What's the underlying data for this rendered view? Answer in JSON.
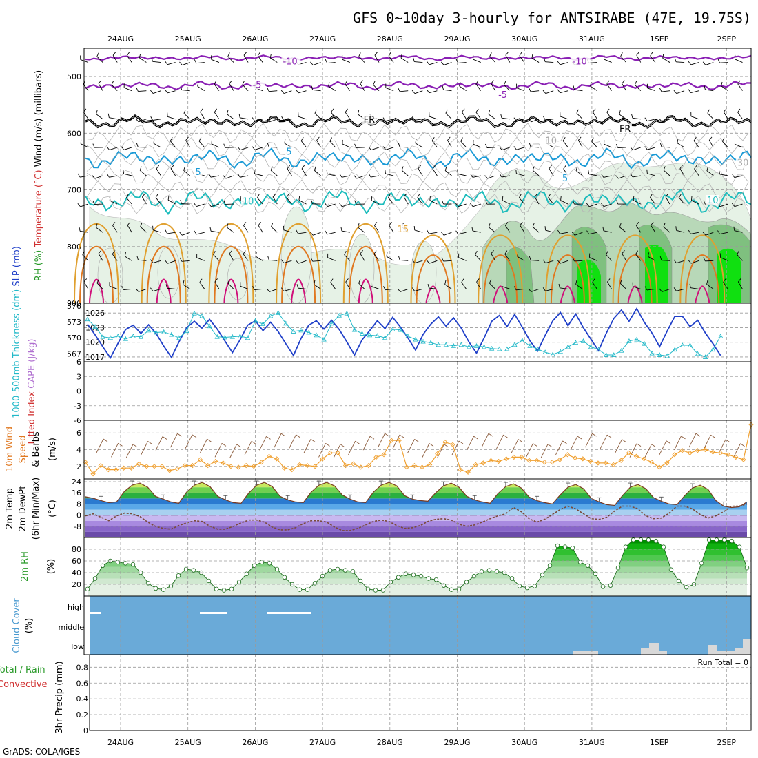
{
  "title": "GFS 0~10day 3-hourly for ANTSIRABE (47E, 19.75S)",
  "footer": "GrADS: COLA/IGES",
  "colors": {
    "purple": "#8a1fb4",
    "cyan_dark": "#1a9ad6",
    "teal": "#1cbcbc",
    "orange_light": "#e0a030",
    "orange": "#e07820",
    "magenta": "#d0107a",
    "rh_light": "#e6f2e6",
    "rh_mid": "#b8d8b8",
    "rh_dark": "#7fc07f",
    "rh_bright": "#10e010",
    "slp_blue": "#1f3fc8",
    "thick_cyan": "#20b8c8",
    "wind_orange": "#f0a030",
    "barb_brown": "#8a5a3a",
    "cloud_blue": "#6aaad8"
  },
  "chart_data": [
    {
      "id": "upper_air",
      "type": "contour",
      "ylabels": [
        {
          "text": "RH (%)",
          "color": "#2a9a2a"
        },
        {
          "text": "Temperature (°C)",
          "color": "#d03030"
        },
        {
          "text": "Wind (m/s)",
          "color": "#000000"
        },
        {
          "text": "(millibars)",
          "color": "#000000"
        }
      ],
      "y_axis": {
        "range": [
          900,
          450
        ],
        "ticks": [
          500,
          600,
          700,
          800,
          900
        ]
      },
      "x_dates": [
        "24AUG",
        "25AUG",
        "26AUG",
        "27AUG",
        "28AUG",
        "29AUG",
        "30AUG",
        "31AUG",
        "1SEP",
        "2SEP"
      ],
      "contour_labels": [
        {
          "text": "-10",
          "color": "#8a1fb4",
          "level_mb": 475,
          "day": 2.85
        },
        {
          "text": "-10",
          "color": "#8a1fb4",
          "level_mb": 475,
          "day": 7.15
        },
        {
          "text": "-5",
          "color": "#8a1fb4",
          "level_mb": 516,
          "day": 2.4
        },
        {
          "text": "-5",
          "color": "#8a1fb4",
          "level_mb": 534,
          "day": 6.05
        },
        {
          "text": "FR",
          "color": "#000000",
          "level_mb": 578,
          "day": 4.05
        },
        {
          "text": "FR",
          "color": "#000000",
          "level_mb": 594,
          "day": 7.85
        },
        {
          "text": "5",
          "color": "#1a9ad6",
          "level_mb": 634,
          "day": 2.9
        },
        {
          "text": "5",
          "color": "#1a9ad6",
          "level_mb": 670,
          "day": 1.55
        },
        {
          "text": "5",
          "color": "#1a9ad6",
          "level_mb": 681,
          "day": 7.0
        },
        {
          "text": "10",
          "color": "#1cbcbc",
          "level_mb": 722,
          "day": 2.25
        },
        {
          "text": "10",
          "color": "#1cbcbc",
          "level_mb": 720,
          "day": 9.15
        },
        {
          "text": "15",
          "color": "#e0a030",
          "level_mb": 771,
          "day": 4.55
        },
        {
          "text": "10",
          "color": "#aaaaaa",
          "level_mb": 615,
          "day": 6.75
        },
        {
          "text": "30",
          "color": "#aaaaaa",
          "level_mb": 654,
          "day": 9.6
        }
      ]
    },
    {
      "id": "slp_thickness",
      "type": "line",
      "ylabels": [
        {
          "text": "1000-500mb Thickness (dm)",
          "color": "#20b8c8"
        },
        {
          "text": "SLP (mb)",
          "color": "#1f3fc8"
        }
      ],
      "left_ticks": [
        567,
        570,
        573,
        576
      ],
      "right_ticks": [
        1017,
        1020,
        1023,
        1026
      ],
      "slp_range": [
        1016,
        1028
      ],
      "thickness_range": [
        565.5,
        576.5
      ],
      "series": [
        {
          "quantity": "slp",
          "values": [
            1023.7,
            1021.5,
            1019.1,
            1016.8,
            1019.8,
            1022.6,
            1023.5,
            1021.8,
            1023.6,
            1021.8,
            1019.2,
            1016.9,
            1020.1,
            1023.0,
            1024.3,
            1022.9,
            1024.7,
            1022.7,
            1020.3,
            1017.9,
            1020.5,
            1023.5,
            1024.4,
            1022.4,
            1024.1,
            1022.2,
            1019.7,
            1017.3,
            1020.8,
            1023.5,
            1024.4,
            1022.7,
            1024.5,
            1022.6,
            1020.1,
            1017.4,
            1020.5,
            1022.4,
            1024.4,
            1022.8,
            1025.1,
            1023.2,
            1020.9,
            1018.4,
            1021.6,
            1023.7,
            1025.2,
            1023.3,
            1025.0,
            1022.9,
            1020.1,
            1017.8,
            1020.9,
            1024.3,
            1025.5,
            1023.2,
            1025.7,
            1023.1,
            1020.3,
            1018.2,
            1021.4,
            1024.4,
            1026.1,
            1023.4,
            1025.8,
            1023.0,
            1020.6,
            1018.3,
            1021.8,
            1024.9,
            1026.6,
            1024.3,
            1026.9,
            1024.1,
            1021.9,
            1019.1,
            1022.3,
            1025.3,
            1025.3,
            1023.2,
            1024.5,
            1021.9,
            1019.7,
            1017.3
          ]
        },
        {
          "quantity": "thickness",
          "values": [
            573.5,
            572.1,
            570.2,
            570.0,
            570.3,
            569.8,
            570.3,
            570.2,
            571.4,
            571.0,
            571.1,
            570.6,
            570.0,
            571.3,
            574.6,
            574.1,
            572.2,
            570.2,
            570.1,
            570.2,
            570.3,
            570.0,
            573.2,
            572.6,
            574.1,
            574.7,
            572.7,
            571.2,
            571.4,
            571.0,
            570.5,
            569.7,
            572.7,
            574.2,
            574.6,
            571.5,
            570.8,
            570.5,
            570.4,
            570.0,
            571.6,
            571.5,
            570.3,
            569.7,
            569.3,
            569.1,
            568.7,
            568.7,
            568.5,
            568.7,
            568.3,
            568.5,
            568.3,
            568.0,
            567.9,
            567.9,
            568.7,
            569.5,
            568.5,
            567.9,
            567.3,
            566.9,
            567.4,
            568.3,
            569.1,
            569.4,
            568.3,
            567.8,
            566.8,
            566.8,
            567.6,
            569.4,
            569.7,
            568.9,
            567.1,
            566.8,
            566.6,
            567.8,
            568.6,
            568.6,
            567.0,
            566.4,
            567.8,
            570.3
          ]
        }
      ]
    },
    {
      "id": "stability",
      "type": "line",
      "ylabels": [
        {
          "text": "Lifted Index",
          "color": "#d03030"
        },
        {
          "text": "CAPE (J/kg)",
          "color": "#b070d0"
        }
      ],
      "ticks": [
        "6",
        "3",
        "0",
        "-3",
        "-6"
      ],
      "lifted_index_range": [
        -6,
        6
      ],
      "zero_line": 0
    },
    {
      "id": "wind10m",
      "type": "line",
      "ylabels": [
        {
          "text": "10m Wind",
          "color": "#e07820"
        },
        {
          "text": "Speed",
          "color": "#e07820"
        },
        {
          "text": "& Barbs",
          "color": "#000000"
        },
        {
          "text": "(m/s)",
          "color": "#000000"
        }
      ],
      "ticks": [
        2,
        4,
        6
      ],
      "range": [
        0.5,
        7.5
      ],
      "series": [
        {
          "quantity": "wind_speed",
          "values": [
            2.5,
            1.1,
            2.1,
            1.6,
            1.6,
            1.8,
            1.8,
            2.3,
            2.0,
            2.0,
            2.0,
            1.5,
            1.7,
            2.1,
            2.1,
            2.8,
            2.1,
            2.6,
            2.4,
            2.0,
            1.9,
            2.1,
            2.0,
            2.5,
            3.2,
            2.9,
            1.8,
            1.6,
            2.2,
            2.1,
            2.0,
            2.9,
            3.6,
            3.6,
            2.1,
            2.3,
            1.9,
            2.1,
            3.1,
            3.4,
            5.1,
            5.1,
            1.9,
            2.1,
            1.9,
            2.2,
            3.5,
            4.9,
            4.6,
            1.6,
            1.3,
            2.2,
            2.4,
            2.7,
            2.6,
            2.9,
            3.1,
            3.1,
            2.7,
            2.7,
            2.5,
            2.5,
            2.8,
            3.4,
            3.0,
            2.9,
            2.6,
            2.4,
            2.4,
            2.2,
            2.7,
            3.6,
            3.2,
            2.9,
            2.5,
            1.9,
            2.4,
            3.4,
            3.9,
            3.6,
            3.9,
            4.0,
            3.7,
            3.6,
            3.4,
            3.1,
            2.8,
            7.0
          ]
        }
      ]
    },
    {
      "id": "temp2m",
      "type": "line",
      "ylabels": [
        {
          "text": "2m Temp",
          "color": "#000000"
        },
        {
          "text": "2m DewPt",
          "color": "#000000"
        },
        {
          "text": "(6hr Min/Max)",
          "color": "#000000"
        },
        {
          "text": "(°C)",
          "color": "#000000"
        }
      ],
      "ticks": [
        24,
        16,
        8,
        0,
        -8
      ],
      "range": [
        -16,
        26
      ],
      "series": [
        {
          "quantity": "temperature",
          "values": [
            13.2,
            12.1,
            10.5,
            9.0,
            9.5,
            17.0,
            21.5,
            23.0,
            20.0,
            13.5,
            11.5,
            9.5,
            8.5,
            16.5,
            21.5,
            23.5,
            20.5,
            13.5,
            11.0,
            9.0,
            8.5,
            16.0,
            21.5,
            23.5,
            20.5,
            13.5,
            11.0,
            9.5,
            9.0,
            16.5,
            21.5,
            23.5,
            21.0,
            14.5,
            11.5,
            9.5,
            9.0,
            16.5,
            21.5,
            23.5,
            21.0,
            14.0,
            11.5,
            10.5,
            10.0,
            16.0,
            21.0,
            23.0,
            20.0,
            13.5,
            11.0,
            9.5,
            8.5,
            15.5,
            20.5,
            22.5,
            19.5,
            13.0,
            10.5,
            9.0,
            8.0,
            14.5,
            20.0,
            22.0,
            19.0,
            12.0,
            9.5,
            7.5,
            7.0,
            14.0,
            20.0,
            22.0,
            19.0,
            12.5,
            10.0,
            8.0,
            7.5,
            14.0,
            19.5,
            21.5,
            18.5,
            10.5,
            6.5,
            5.5,
            6.0,
            9.5
          ]
        },
        {
          "quantity": "dewpoint",
          "values": [
            -0.5,
            1.0,
            -1.5,
            -4.0,
            -0.5,
            1.5,
            1.0,
            -1.0,
            -5.0,
            -8.0,
            -9.5,
            -10.0,
            -7.5,
            -5.5,
            -4.0,
            -4.5,
            -8.0,
            -10.0,
            -10.0,
            -8.0,
            -5.5,
            -3.5,
            -3.5,
            -5.0,
            -8.5,
            -10.5,
            -10.5,
            -9.0,
            -6.0,
            -4.0,
            -4.0,
            -5.0,
            -8.5,
            -11.0,
            -11.0,
            -9.5,
            -7.0,
            -4.5,
            -3.5,
            -4.5,
            -7.5,
            -9.5,
            -9.0,
            -7.5,
            -4.5,
            -3.0,
            -2.5,
            -3.5,
            -6.5,
            -8.0,
            -7.0,
            -5.0,
            -2.5,
            -0.5,
            1.0,
            5.5,
            2.5,
            -2.5,
            -5.0,
            -3.0,
            0.5,
            4.0,
            6.5,
            4.5,
            1.0,
            -2.5,
            -3.0,
            -1.5,
            3.0,
            6.5,
            6.5,
            4.5,
            -0.5,
            -2.5,
            -2.0,
            1.5,
            6.5,
            6.5,
            4.5,
            0.5,
            -2.0,
            -0.5,
            2.5,
            6.5,
            6.5,
            8.0
          ]
        }
      ]
    },
    {
      "id": "rh2m",
      "type": "area",
      "ylabels": [
        {
          "text": "2m RH",
          "color": "#2a9a2a"
        },
        {
          "text": "(%)",
          "color": "#000000"
        }
      ],
      "ticks": [
        20,
        40,
        60,
        80
      ],
      "range": [
        0,
        100
      ],
      "series": [
        {
          "quantity": "rh",
          "values": [
            12,
            30,
            52,
            60,
            58,
            56,
            54,
            40,
            22,
            13,
            11,
            17,
            35,
            46,
            44,
            40,
            26,
            12,
            10,
            12,
            24,
            38,
            52,
            58,
            56,
            46,
            32,
            20,
            11,
            11,
            22,
            34,
            44,
            46,
            44,
            42,
            26,
            12,
            10,
            10,
            24,
            32,
            38,
            36,
            34,
            30,
            28,
            18,
            11,
            12,
            24,
            34,
            42,
            44,
            42,
            40,
            30,
            17,
            14,
            17,
            36,
            52,
            86,
            84,
            82,
            58,
            52,
            38,
            16,
            18,
            48,
            84,
            96,
            96,
            96,
            94,
            84,
            45,
            26,
            15,
            20,
            56,
            96,
            96,
            96,
            94,
            84,
            48
          ]
        }
      ]
    },
    {
      "id": "cloud",
      "type": "area",
      "ylabels": [
        {
          "text": "Cloud Cover",
          "color": "#4a9ad0"
        },
        {
          "text": "(%)",
          "color": "#000000"
        }
      ],
      "ticks": [
        "low",
        "middle",
        "high"
      ]
    },
    {
      "id": "precip",
      "type": "bar",
      "ylabels": [
        {
          "text": "Total / Rain",
          "color": "#2a9a2a"
        },
        {
          "text": "Convective",
          "color": "#d03030"
        },
        {
          "text": "3hr Precip (mm)",
          "color": "#000000"
        }
      ],
      "ticks": [
        "0",
        "0.2",
        "0.4",
        "0.6",
        "0.8"
      ],
      "range": [
        0,
        0.96
      ],
      "run_total": "Run Total = 0"
    }
  ]
}
